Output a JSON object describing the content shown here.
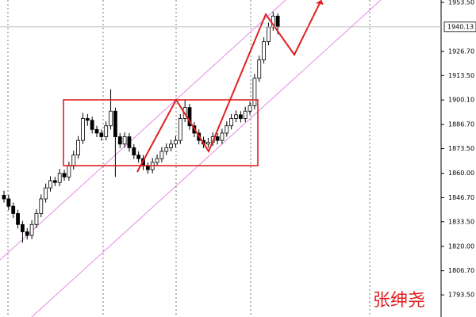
{
  "chart_data": {
    "type": "candlestick",
    "ohlc": [
      [
        1848,
        1850.5,
        1844,
        1846
      ],
      [
        1846,
        1848.2,
        1839.8,
        1842
      ],
      [
        1842,
        1844,
        1835.6,
        1838
      ],
      [
        1838,
        1840,
        1829.8,
        1832
      ],
      [
        1832,
        1834,
        1822,
        1828
      ],
      [
        1828,
        1830,
        1823.8,
        1826
      ],
      [
        1826,
        1834.4,
        1824,
        1832
      ],
      [
        1832,
        1840.4,
        1830,
        1838
      ],
      [
        1838,
        1848.4,
        1836,
        1846
      ],
      [
        1846,
        1854.4,
        1844,
        1852
      ],
      [
        1852,
        1858.4,
        1850,
        1856
      ],
      [
        1856,
        1858,
        1853,
        1855
      ],
      [
        1855,
        1862.4,
        1853,
        1860
      ],
      [
        1860,
        1862,
        1856,
        1858
      ],
      [
        1858,
        1866.4,
        1856,
        1864
      ],
      [
        1864,
        1872.4,
        1862,
        1870
      ],
      [
        1870,
        1880.4,
        1868,
        1878
      ],
      [
        1878,
        1893,
        1876,
        1890
      ],
      [
        1890,
        1892.4,
        1886,
        1889
      ],
      [
        1889,
        1891,
        1881.8,
        1884
      ],
      [
        1884,
        1886,
        1879.8,
        1882
      ],
      [
        1882,
        1884,
        1877.8,
        1880
      ],
      [
        1880,
        1888.4,
        1878,
        1886
      ],
      [
        1886,
        1906,
        1884,
        1894
      ],
      [
        1894,
        1896,
        1858,
        1880
      ],
      [
        1880,
        1882,
        1873.8,
        1876
      ],
      [
        1876,
        1882.4,
        1874,
        1880
      ],
      [
        1880,
        1882,
        1871.8,
        1874
      ],
      [
        1874,
        1876,
        1867.8,
        1870
      ],
      [
        1870,
        1872,
        1865.8,
        1868
      ],
      [
        1868,
        1870,
        1861.8,
        1864
      ],
      [
        1864,
        1866,
        1859.8,
        1862
      ],
      [
        1862,
        1868.4,
        1860,
        1866
      ],
      [
        1866,
        1870.4,
        1864,
        1868
      ],
      [
        1868,
        1874.4,
        1866,
        1872
      ],
      [
        1872,
        1876.4,
        1870,
        1874
      ],
      [
        1874,
        1878.4,
        1872,
        1876
      ],
      [
        1876,
        1880.4,
        1874,
        1878
      ],
      [
        1878,
        1892.4,
        1876,
        1890
      ],
      [
        1890,
        1900,
        1888,
        1896
      ],
      [
        1896,
        1898,
        1883.8,
        1886
      ],
      [
        1886,
        1888,
        1879.8,
        1882
      ],
      [
        1882,
        1884,
        1875.8,
        1878
      ],
      [
        1878,
        1880,
        1873.8,
        1876
      ],
      [
        1876,
        1879.4,
        1874,
        1877
      ],
      [
        1877,
        1882.4,
        1875,
        1880
      ],
      [
        1880,
        1882,
        1875.8,
        1878
      ],
      [
        1878,
        1884.4,
        1876,
        1882
      ],
      [
        1882,
        1888.4,
        1880,
        1886
      ],
      [
        1886,
        1892.4,
        1884,
        1890
      ],
      [
        1890,
        1894.4,
        1888,
        1892
      ],
      [
        1892,
        1894,
        1887.8,
        1890
      ],
      [
        1890,
        1896.4,
        1888,
        1894
      ],
      [
        1894,
        1899.4,
        1892,
        1897
      ],
      [
        1897,
        1914.4,
        1895,
        1912
      ],
      [
        1912,
        1924.4,
        1910,
        1922
      ],
      [
        1922,
        1934.4,
        1920,
        1932
      ],
      [
        1932,
        1942.4,
        1930,
        1940
      ],
      [
        1940,
        1948.4,
        1938,
        1946
      ],
      [
        1946,
        1947.5,
        1936,
        1940.13
      ]
    ],
    "up_color": "#ffffff",
    "down_color": "#000000",
    "ylim": [
      1781.4,
      1954.8
    ],
    "yticks": [
      {
        "value": 1953.5,
        "label": "1953.50"
      },
      {
        "value": 1926.7,
        "label": "1926.70"
      },
      {
        "value": 1913.5,
        "label": "1913.50"
      },
      {
        "value": 1900.1,
        "label": "1900.10"
      },
      {
        "value": 1886.7,
        "label": "1886.70"
      },
      {
        "value": 1873.5,
        "label": "1873.50"
      },
      {
        "value": 1860,
        "label": "1860.00"
      },
      {
        "value": 1846.7,
        "label": "1846.70"
      },
      {
        "value": 1833.5,
        "label": "1833.50"
      },
      {
        "value": 1820,
        "label": "1820.00"
      },
      {
        "value": 1806.7,
        "label": "1806.70"
      },
      {
        "value": 1793.5,
        "label": "1793.50"
      }
    ],
    "last_price": 1940.13,
    "watermark": "张绅尧"
  }
}
